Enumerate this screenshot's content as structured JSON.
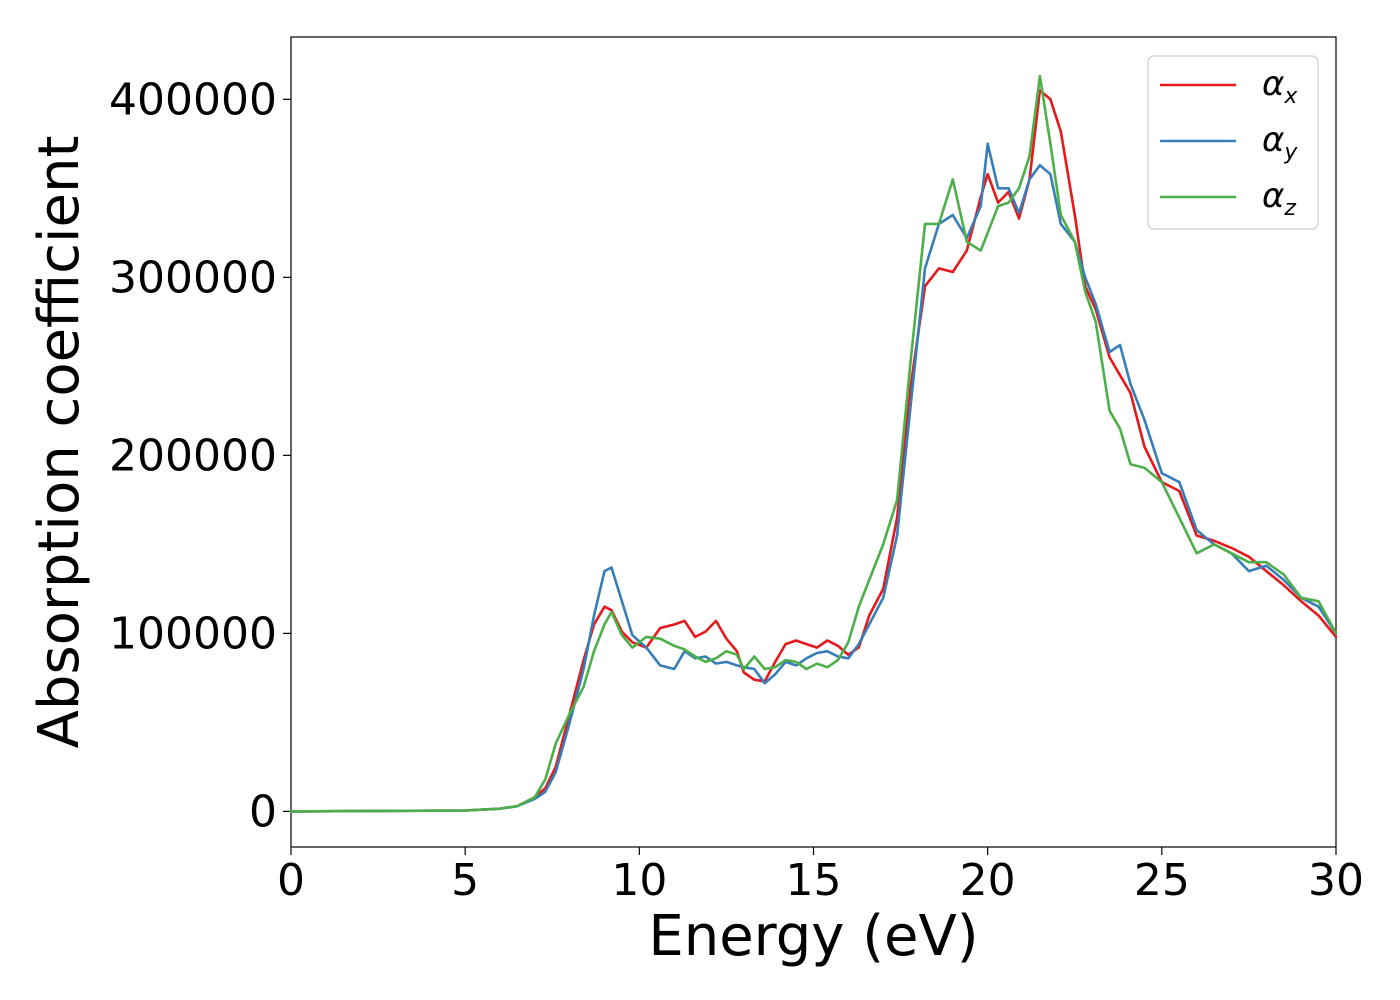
{
  "chart_data": {
    "type": "line",
    "xlabel": "Energy (eV)",
    "ylabel": "Absorption coefficient",
    "xlim": [
      0,
      30
    ],
    "ylim": [
      -20000,
      435000
    ],
    "xticks": [
      0,
      5,
      10,
      15,
      20,
      25,
      30
    ],
    "xtick_labels": [
      "0",
      "5",
      "10",
      "15",
      "20",
      "25",
      "30"
    ],
    "yticks": [
      0,
      100000,
      200000,
      300000,
      400000
    ],
    "ytick_labels": [
      "0",
      "100000",
      "200000",
      "300000",
      "400000"
    ],
    "grid": false,
    "legend_position": "top-right",
    "series": [
      {
        "name": "αx",
        "symbol": "α",
        "subscript": "x",
        "color": "#e41a1c",
        "x": [
          0,
          5,
          6,
          6.5,
          7,
          7.3,
          7.6,
          8.0,
          8.4,
          8.7,
          9.0,
          9.2,
          9.5,
          9.8,
          10.2,
          10.6,
          11.0,
          11.3,
          11.6,
          11.9,
          12.2,
          12.5,
          12.8,
          13.0,
          13.3,
          13.6,
          13.9,
          14.2,
          14.5,
          14.8,
          15.1,
          15.4,
          15.7,
          16.0,
          16.3,
          16.6,
          17.0,
          17.4,
          17.8,
          18.2,
          18.6,
          19.0,
          19.4,
          19.8,
          20.0,
          20.3,
          20.6,
          20.9,
          21.2,
          21.5,
          21.8,
          22.1,
          22.5,
          22.8,
          23.1,
          23.5,
          23.8,
          24.1,
          24.5,
          25.0,
          25.5,
          26.0,
          26.5,
          27.0,
          27.5,
          28.0,
          28.5,
          29.0,
          29.5,
          30.0
        ],
        "y": [
          0,
          500,
          1500,
          3000,
          8000,
          13000,
          25000,
          55000,
          85000,
          105000,
          115000,
          113000,
          101000,
          95000,
          92000,
          103000,
          105000,
          107000,
          98000,
          101000,
          107000,
          97000,
          90000,
          78000,
          74000,
          73000,
          84000,
          94000,
          96000,
          94000,
          92000,
          96000,
          93000,
          88000,
          92000,
          110000,
          125000,
          165000,
          240000,
          295000,
          305000,
          303000,
          315000,
          345000,
          358000,
          342000,
          348000,
          333000,
          355000,
          405000,
          400000,
          382000,
          335000,
          295000,
          282000,
          255000,
          245000,
          235000,
          205000,
          185000,
          180000,
          155000,
          152000,
          148000,
          143000,
          135000,
          127000,
          118000,
          110000,
          98000
        ]
      },
      {
        "name": "αy",
        "symbol": "α",
        "subscript": "y",
        "color": "#377eb8",
        "x": [
          0,
          5,
          6,
          6.5,
          7,
          7.3,
          7.6,
          8.0,
          8.4,
          8.7,
          9.0,
          9.2,
          9.5,
          9.8,
          10.2,
          10.6,
          11.0,
          11.3,
          11.6,
          11.9,
          12.2,
          12.5,
          12.8,
          13.0,
          13.3,
          13.6,
          13.9,
          14.2,
          14.5,
          14.8,
          15.1,
          15.4,
          15.7,
          16.0,
          16.3,
          16.6,
          17.0,
          17.4,
          17.8,
          18.2,
          18.6,
          19.0,
          19.4,
          19.8,
          20.0,
          20.3,
          20.6,
          20.9,
          21.2,
          21.5,
          21.8,
          22.1,
          22.5,
          22.8,
          23.1,
          23.5,
          23.8,
          24.1,
          24.5,
          25.0,
          25.5,
          26.0,
          26.5,
          27.0,
          27.5,
          28.0,
          28.5,
          29.0,
          29.5,
          30.0
        ],
        "y": [
          0,
          500,
          1500,
          3000,
          7000,
          11000,
          22000,
          50000,
          80000,
          110000,
          135000,
          137000,
          118000,
          99000,
          92000,
          82000,
          80000,
          90000,
          86000,
          87000,
          83000,
          84000,
          82000,
          81000,
          80000,
          72000,
          77000,
          84000,
          82000,
          86000,
          89000,
          90000,
          87000,
          86000,
          94000,
          105000,
          120000,
          155000,
          230000,
          305000,
          330000,
          335000,
          322000,
          340000,
          375000,
          350000,
          350000,
          336000,
          355000,
          363000,
          358000,
          330000,
          320000,
          300000,
          285000,
          258000,
          262000,
          240000,
          220000,
          190000,
          185000,
          158000,
          150000,
          145000,
          135000,
          138000,
          130000,
          120000,
          115000,
          100000
        ]
      },
      {
        "name": "αz",
        "symbol": "α",
        "subscript": "z",
        "color": "#4daf4a",
        "x": [
          0,
          5,
          6,
          6.5,
          7,
          7.3,
          7.6,
          8.0,
          8.4,
          8.7,
          9.0,
          9.2,
          9.5,
          9.8,
          10.2,
          10.6,
          11.0,
          11.3,
          11.6,
          11.9,
          12.2,
          12.5,
          12.8,
          13.0,
          13.3,
          13.6,
          13.9,
          14.2,
          14.5,
          14.8,
          15.1,
          15.4,
          15.7,
          16.0,
          16.3,
          16.6,
          17.0,
          17.4,
          17.8,
          18.2,
          18.6,
          19.0,
          19.4,
          19.8,
          20.0,
          20.3,
          20.6,
          20.9,
          21.2,
          21.5,
          21.8,
          22.1,
          22.5,
          22.8,
          23.1,
          23.5,
          23.8,
          24.1,
          24.5,
          25.0,
          25.5,
          26.0,
          26.5,
          27.0,
          27.5,
          28.0,
          28.5,
          29.0,
          29.5,
          30.0
        ],
        "y": [
          0,
          500,
          1500,
          3000,
          8000,
          18000,
          38000,
          55000,
          70000,
          90000,
          105000,
          112000,
          99000,
          92000,
          98000,
          97000,
          93000,
          91000,
          87000,
          84000,
          86000,
          90000,
          88000,
          80000,
          87000,
          80000,
          81000,
          85000,
          84000,
          80000,
          83000,
          81000,
          85000,
          95000,
          115000,
          130000,
          150000,
          175000,
          255000,
          330000,
          330000,
          355000,
          320000,
          315000,
          325000,
          340000,
          342000,
          350000,
          368000,
          413000,
          375000,
          335000,
          320000,
          292000,
          275000,
          225000,
          215000,
          195000,
          193000,
          185000,
          165000,
          145000,
          150000,
          145000,
          140000,
          140000,
          133000,
          120000,
          118000,
          100000
        ]
      }
    ]
  }
}
